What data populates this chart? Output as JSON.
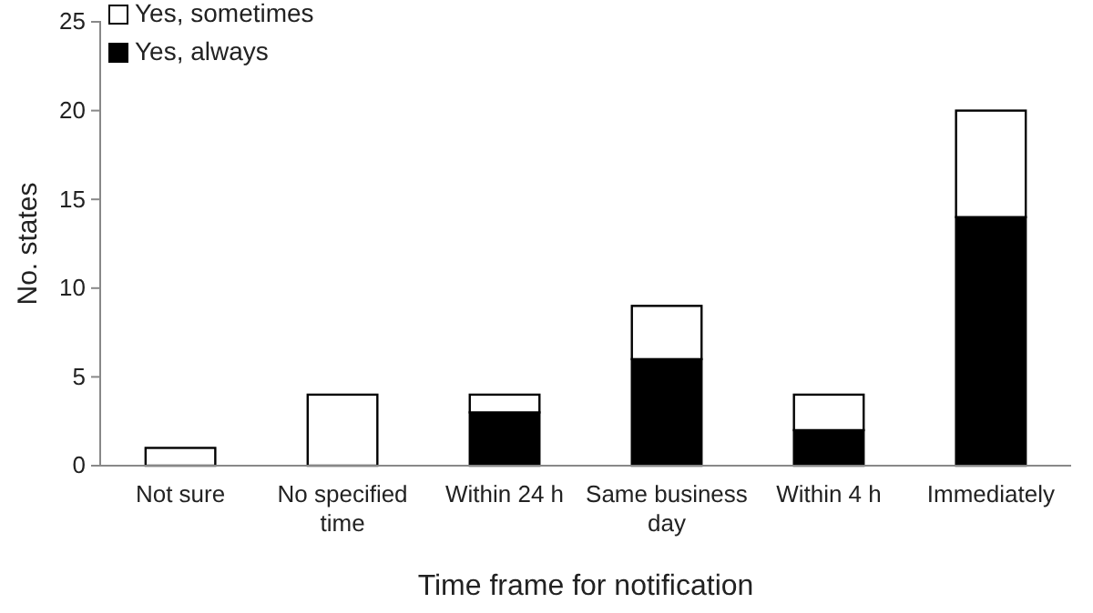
{
  "chart_data": {
    "type": "bar",
    "stacked": true,
    "xlabel": "Time frame for notification",
    "ylabel": "No. states",
    "categories": [
      "Not sure",
      "No specified time",
      "Within 24 h",
      "Same business day",
      "Within 4 h",
      "Immediately"
    ],
    "series": [
      {
        "name": "Yes, always",
        "color": "#000000",
        "values": [
          0,
          0,
          3,
          6,
          2,
          14
        ]
      },
      {
        "name": "Yes, sometimes",
        "color": "#ffffff",
        "values": [
          1,
          4,
          1,
          3,
          2,
          6
        ]
      }
    ],
    "ylim": [
      0,
      25
    ],
    "yticks": [
      0,
      5,
      10,
      15,
      20,
      25
    ],
    "grid": false,
    "legend": "top left"
  }
}
